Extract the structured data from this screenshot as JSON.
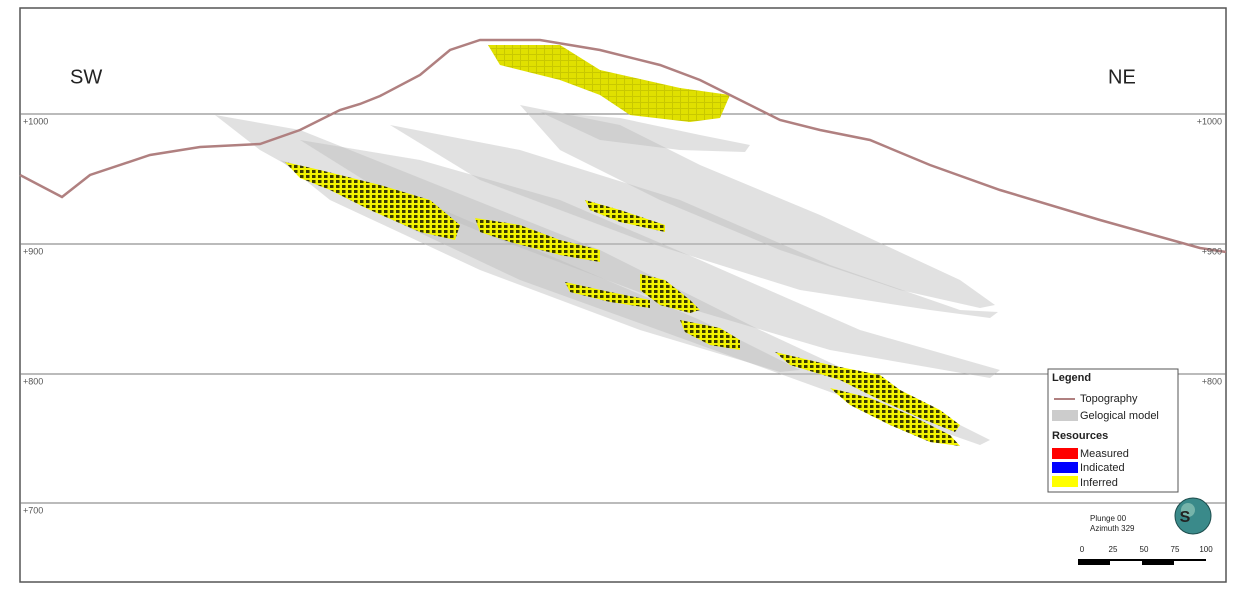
{
  "labels": {
    "left": "SW",
    "right": "NE"
  },
  "elevations": {
    "left": [
      "+1000",
      "+900",
      "+800",
      "+700"
    ],
    "right": [
      "+1000",
      "+900",
      "+800"
    ]
  },
  "legend": {
    "title": "Legend",
    "items": [
      "Topography",
      "Gelogical model"
    ],
    "resources_title": "Resources",
    "resources": [
      "Measured",
      "Indicated",
      "Inferred"
    ]
  },
  "view": {
    "plunge": "Plunge 00",
    "azimuth": "Azimuth 329"
  },
  "scale": [
    "0",
    "25",
    "50",
    "75",
    "100"
  ],
  "compass": "S"
}
